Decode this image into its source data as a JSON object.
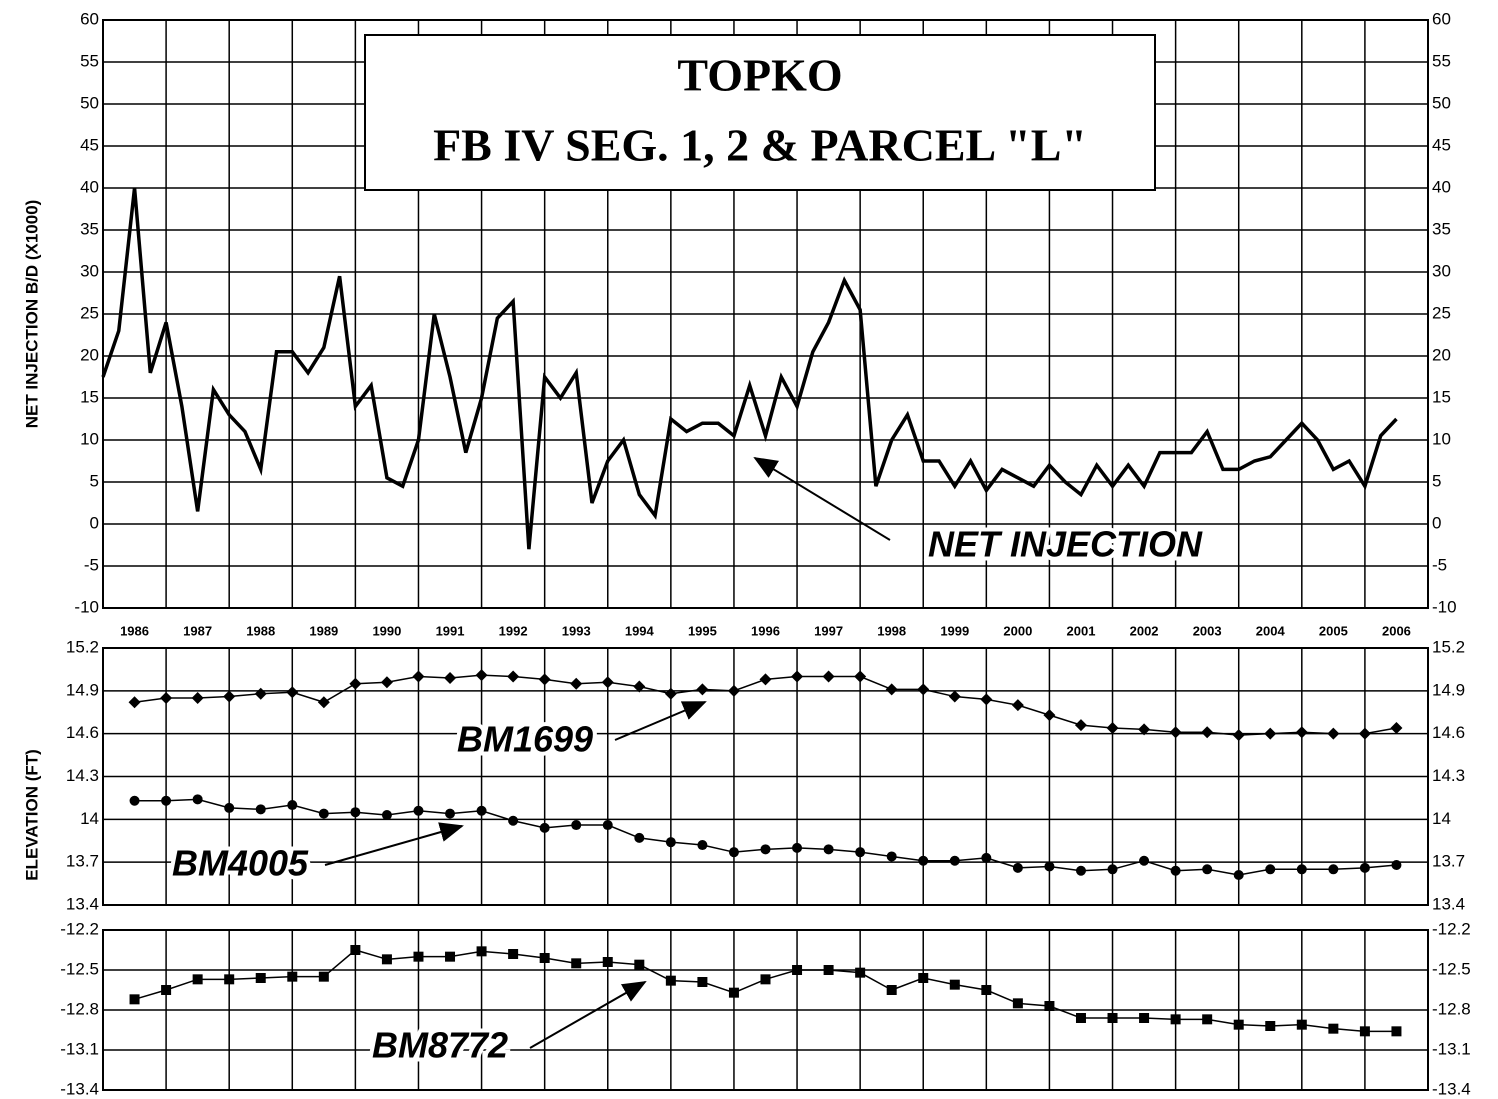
{
  "chart_data": [
    {
      "type": "line",
      "title": [
        "TOPKO",
        "FB IV    SEG. 1, 2 & PARCEL \"L\""
      ],
      "y_label": "NET INJECTION B/D (X1000)",
      "xlim": [
        1986,
        2007
      ],
      "ylim": [
        -10,
        60
      ],
      "yticks": [
        -10,
        -5,
        0,
        5,
        10,
        15,
        20,
        25,
        30,
        35,
        40,
        45,
        50,
        55,
        60
      ],
      "grid": true,
      "xticks": [
        {
          "value": 1986.5,
          "label": "1986"
        },
        {
          "value": 1987.5,
          "label": "1987"
        },
        {
          "value": 1988.5,
          "label": "1988"
        },
        {
          "value": 1989.5,
          "label": "1989"
        },
        {
          "value": 1990.5,
          "label": "1990"
        },
        {
          "value": 1991.5,
          "label": "1991"
        },
        {
          "value": 1992.5,
          "label": "1992"
        },
        {
          "value": 1993.5,
          "label": "1993"
        },
        {
          "value": 1994.5,
          "label": "1994"
        },
        {
          "value": 1995.5,
          "label": "1995"
        },
        {
          "value": 1996.5,
          "label": "1996"
        },
        {
          "value": 1997.5,
          "label": "1997"
        },
        {
          "value": 1998.5,
          "label": "1998"
        },
        {
          "value": 1999.5,
          "label": "1999"
        },
        {
          "value": 2000.5,
          "label": "2000"
        },
        {
          "value": 2001.5,
          "label": "2001"
        },
        {
          "value": 2002.5,
          "label": "2002"
        },
        {
          "value": 2003.5,
          "label": "2003"
        },
        {
          "value": 2004.5,
          "label": "2004"
        },
        {
          "value": 2005.5,
          "label": "2005"
        },
        {
          "value": 2006.5,
          "label": "2006"
        }
      ],
      "x": [
        1986,
        1986.25,
        1986.5,
        1986.75,
        1987,
        1987.25,
        1987.5,
        1987.75,
        1988,
        1988.25,
        1988.5,
        1988.75,
        1989,
        1989.25,
        1989.5,
        1989.75,
        1990,
        1990.25,
        1990.5,
        1990.75,
        1991,
        1991.25,
        1991.5,
        1991.75,
        1992,
        1992.25,
        1992.5,
        1992.75,
        1993,
        1993.25,
        1993.5,
        1993.75,
        1994,
        1994.25,
        1994.5,
        1994.75,
        1995,
        1995.25,
        1995.5,
        1995.75,
        1996,
        1996.25,
        1996.5,
        1996.75,
        1997,
        1997.25,
        1997.5,
        1997.75,
        1998,
        1998.25,
        1998.5,
        1998.75,
        1999,
        1999.25,
        1999.5,
        1999.75,
        2000,
        2000.25,
        2000.5,
        2000.75,
        2001,
        2001.25,
        2001.5,
        2001.75,
        2002,
        2002.25,
        2002.5,
        2002.75,
        2003,
        2003.25,
        2003.5,
        2003.75,
        2004,
        2004.25,
        2004.5,
        2004.75,
        2005,
        2005.25,
        2005.5,
        2005.75,
        2006,
        2006.25,
        2006.5
      ],
      "series": [
        {
          "name": "NET INJECTION",
          "color": "#000000",
          "marker": "none",
          "values": [
            17.5,
            23,
            40,
            18,
            24,
            14,
            1.5,
            16,
            13,
            11,
            6.5,
            20.5,
            20.5,
            18,
            21,
            29.5,
            14,
            16.5,
            5.5,
            4.5,
            10,
            25,
            17.5,
            8.5,
            15,
            24.5,
            26.5,
            -3,
            17.5,
            15,
            18,
            2.5,
            7.5,
            10,
            3.5,
            1,
            12.5,
            11,
            12,
            12,
            10.5,
            16.5,
            10.5,
            17.5,
            14,
            20.5,
            24,
            29,
            25.5,
            4.5,
            10,
            13,
            7.5,
            7.5,
            4.5,
            7.5,
            4,
            6.5,
            5.5,
            4.5,
            7,
            5,
            3.5,
            7,
            4.5,
            7,
            4.5,
            8.5,
            8.5,
            8.5,
            11,
            6.5,
            6.5,
            7.5,
            8,
            10,
            12,
            10,
            6.5,
            7.5,
            4.5,
            10.5,
            12.5
          ]
        }
      ]
    },
    {
      "type": "line",
      "y_label": "ELEVATION (FT)",
      "xlim": [
        1986,
        2007
      ],
      "ylim": [
        13.4,
        15.2
      ],
      "yticks": [
        13.4,
        13.7,
        14,
        14.3,
        14.6,
        14.9,
        15.2
      ],
      "grid": true,
      "x": [
        1986.5,
        1987,
        1987.5,
        1988,
        1988.5,
        1989,
        1989.5,
        1990,
        1990.5,
        1991,
        1991.5,
        1992,
        1992.5,
        1993,
        1993.5,
        1994,
        1994.5,
        1995,
        1995.5,
        1996,
        1996.5,
        1997,
        1997.5,
        1998,
        1998.5,
        1999,
        1999.5,
        2000,
        2000.5,
        2001,
        2001.5,
        2002,
        2002.5,
        2003,
        2003.5,
        2004,
        2004.5,
        2005,
        2005.5,
        2006,
        2006.5
      ],
      "series": [
        {
          "name": "BM1699",
          "color": "#000000",
          "marker": "diamond",
          "values": [
            14.82,
            14.85,
            14.85,
            14.86,
            14.88,
            14.89,
            14.82,
            14.95,
            14.96,
            15.0,
            14.99,
            15.01,
            15.0,
            14.98,
            14.95,
            14.96,
            14.93,
            14.88,
            14.91,
            14.9,
            14.98,
            15.0,
            15.0,
            15.0,
            14.91,
            14.91,
            14.86,
            14.84,
            14.8,
            14.73,
            14.66,
            14.64,
            14.63,
            14.61,
            14.61,
            14.59,
            14.6,
            14.61,
            14.6,
            14.6,
            14.64
          ]
        },
        {
          "name": "BM4005",
          "color": "#000000",
          "marker": "circle",
          "values": [
            14.13,
            14.13,
            14.14,
            14.08,
            14.07,
            14.1,
            14.04,
            14.05,
            14.03,
            14.06,
            14.04,
            14.06,
            13.99,
            13.94,
            13.96,
            13.96,
            13.87,
            13.84,
            13.82,
            13.77,
            13.79,
            13.8,
            13.79,
            13.77,
            13.74,
            13.71,
            13.71,
            13.73,
            13.66,
            13.67,
            13.64,
            13.65,
            13.71,
            13.64,
            13.65,
            13.61,
            13.65,
            13.65,
            13.65,
            13.66,
            13.68
          ]
        }
      ]
    },
    {
      "type": "line",
      "xlim": [
        1986,
        2007
      ],
      "ylim": [
        -13.4,
        -12.2
      ],
      "yticks": [
        -13.4,
        -13.1,
        -12.8,
        -12.5,
        -12.2
      ],
      "grid": true,
      "x": [
        1986.5,
        1987,
        1987.5,
        1988,
        1988.5,
        1989,
        1989.5,
        1990,
        1990.5,
        1991,
        1991.5,
        1992,
        1992.5,
        1993,
        1993.5,
        1994,
        1994.5,
        1995,
        1995.5,
        1996,
        1996.5,
        1997,
        1997.5,
        1998,
        1998.5,
        1999,
        1999.5,
        2000,
        2000.5,
        2001,
        2001.5,
        2002,
        2002.5,
        2003,
        2003.5,
        2004,
        2004.5,
        2005,
        2005.5,
        2006,
        2006.5
      ],
      "series": [
        {
          "name": "BM8772",
          "color": "#000000",
          "marker": "square",
          "values": [
            -12.72,
            -12.65,
            -12.57,
            -12.57,
            -12.56,
            -12.55,
            -12.55,
            -12.35,
            -12.42,
            -12.4,
            -12.4,
            -12.36,
            -12.38,
            -12.41,
            -12.45,
            -12.44,
            -12.46,
            -12.58,
            -12.59,
            -12.67,
            -12.57,
            -12.5,
            -12.5,
            -12.52,
            -12.65,
            -12.56,
            -12.61,
            -12.65,
            -12.75,
            -12.77,
            -12.86,
            -12.86,
            -12.86,
            -12.87,
            -12.87,
            -12.91,
            -12.92,
            -12.91,
            -12.94,
            -12.96,
            -12.96
          ]
        }
      ]
    }
  ]
}
